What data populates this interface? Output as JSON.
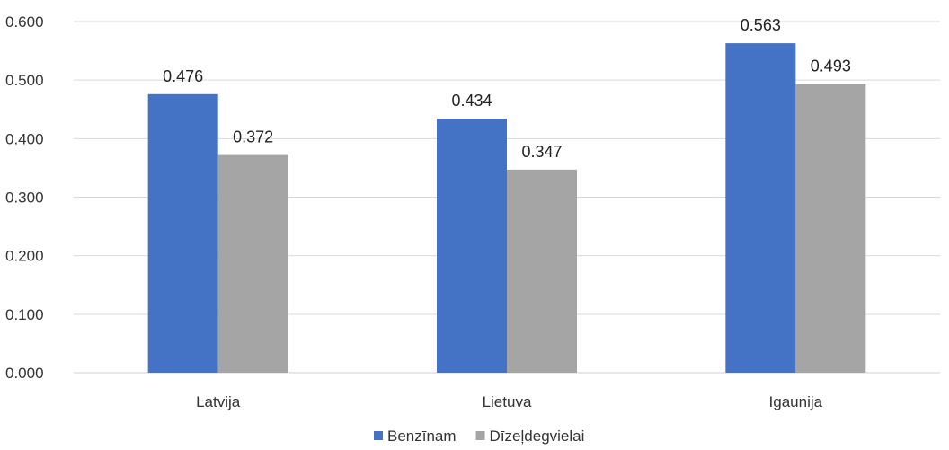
{
  "chart_data": {
    "type": "bar",
    "categories": [
      "Latvija",
      "Lietuva",
      "Igaunija"
    ],
    "series": [
      {
        "name": "Benzīnam",
        "values": [
          0.476,
          0.434,
          0.563
        ],
        "color": "#4472C4"
      },
      {
        "name": "Dīzeļdegvielai",
        "values": [
          0.372,
          0.347,
          0.493
        ],
        "color": "#A5A5A5"
      }
    ],
    "ylim": [
      0,
      0.6
    ],
    "yticks": [
      "0.000",
      "0.100",
      "0.200",
      "0.300",
      "0.400",
      "0.500",
      "0.600"
    ],
    "grid": true,
    "legend": "bottom",
    "gridColor": "#D9D9D9"
  }
}
